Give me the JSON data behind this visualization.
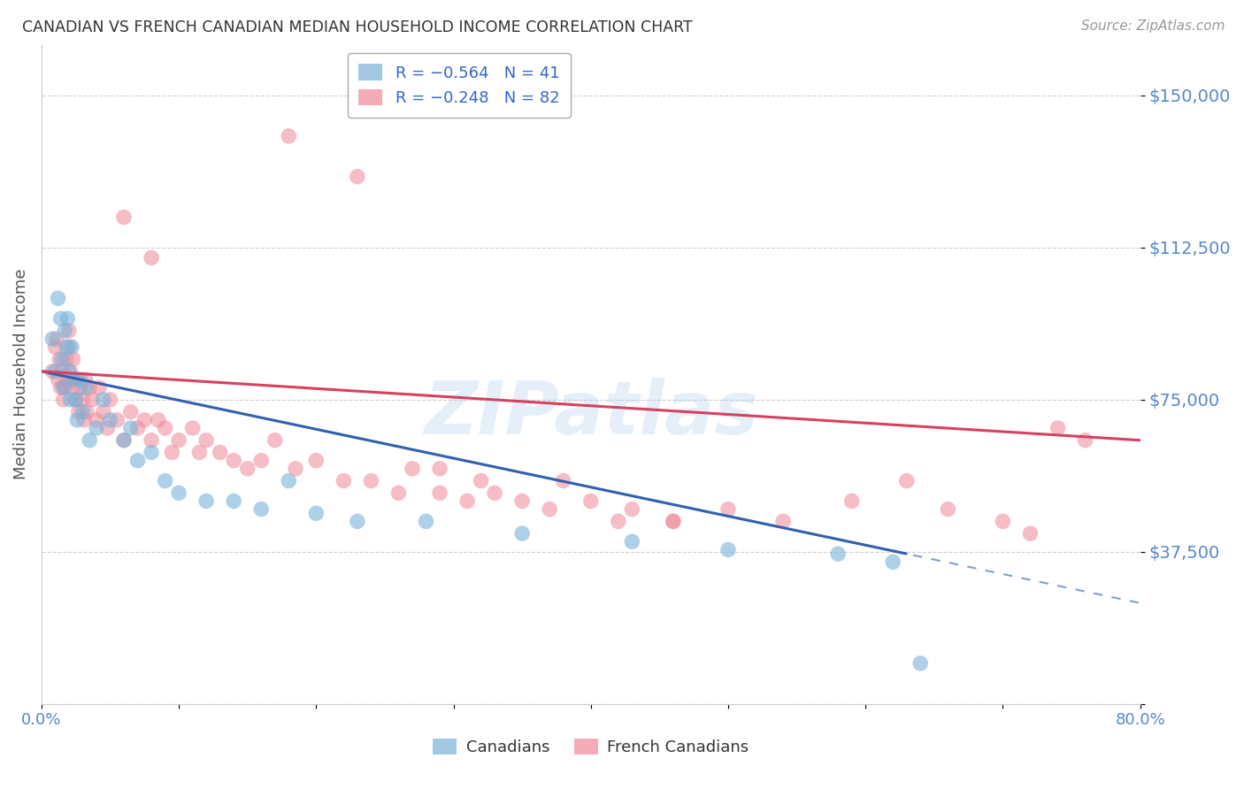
{
  "title": "CANADIAN VS FRENCH CANADIAN MEDIAN HOUSEHOLD INCOME CORRELATION CHART",
  "source": "Source: ZipAtlas.com",
  "ylabel": "Median Household Income",
  "watermark": "ZIPatlas",
  "xlim": [
    0.0,
    0.8
  ],
  "ylim": [
    0,
    162500
  ],
  "yticks": [
    0,
    37500,
    75000,
    112500,
    150000
  ],
  "ytick_labels": [
    "",
    "$37,500",
    "$75,000",
    "$112,500",
    "$150,000"
  ],
  "canadian_color": "#7ab3d9",
  "french_canadian_color": "#f08898",
  "canadian_line_color": "#3060b0",
  "french_canadian_line_color": "#d84060",
  "bg_color": "#ffffff",
  "grid_color": "#cccccc",
  "title_color": "#333333",
  "axis_label_color": "#555555",
  "tick_label_color": "#5588cc",
  "source_color": "#999999",
  "canadians_x": [
    0.008,
    0.01,
    0.012,
    0.014,
    0.015,
    0.016,
    0.017,
    0.018,
    0.019,
    0.02,
    0.021,
    0.022,
    0.023,
    0.025,
    0.026,
    0.028,
    0.03,
    0.032,
    0.035,
    0.04,
    0.045,
    0.05,
    0.06,
    0.065,
    0.07,
    0.08,
    0.09,
    0.1,
    0.12,
    0.14,
    0.16,
    0.18,
    0.2,
    0.23,
    0.28,
    0.35,
    0.43,
    0.5,
    0.58,
    0.62,
    0.64
  ],
  "canadians_y": [
    90000,
    82000,
    100000,
    95000,
    85000,
    78000,
    92000,
    88000,
    95000,
    82000,
    75000,
    88000,
    80000,
    75000,
    70000,
    80000,
    72000,
    78000,
    65000,
    68000,
    75000,
    70000,
    65000,
    68000,
    60000,
    62000,
    55000,
    52000,
    50000,
    50000,
    48000,
    55000,
    47000,
    45000,
    45000,
    42000,
    40000,
    38000,
    37000,
    35000,
    10000
  ],
  "french_canadians_x": [
    0.008,
    0.01,
    0.011,
    0.012,
    0.013,
    0.014,
    0.015,
    0.016,
    0.017,
    0.018,
    0.019,
    0.02,
    0.02,
    0.021,
    0.022,
    0.023,
    0.024,
    0.025,
    0.026,
    0.027,
    0.028,
    0.03,
    0.031,
    0.032,
    0.033,
    0.035,
    0.037,
    0.04,
    0.042,
    0.045,
    0.048,
    0.05,
    0.055,
    0.06,
    0.065,
    0.07,
    0.075,
    0.08,
    0.085,
    0.09,
    0.095,
    0.1,
    0.11,
    0.115,
    0.12,
    0.13,
    0.14,
    0.15,
    0.16,
    0.17,
    0.185,
    0.2,
    0.22,
    0.24,
    0.26,
    0.29,
    0.31,
    0.33,
    0.37,
    0.4,
    0.43,
    0.46,
    0.32,
    0.35,
    0.42,
    0.27,
    0.29,
    0.38,
    0.46,
    0.5,
    0.54,
    0.59,
    0.63,
    0.66,
    0.7,
    0.72,
    0.74,
    0.76,
    0.06,
    0.08,
    0.18,
    0.23
  ],
  "french_canadians_y": [
    82000,
    88000,
    90000,
    80000,
    85000,
    78000,
    82000,
    75000,
    78000,
    85000,
    80000,
    88000,
    92000,
    82000,
    78000,
    85000,
    80000,
    75000,
    80000,
    72000,
    78000,
    75000,
    70000,
    80000,
    72000,
    78000,
    75000,
    70000,
    78000,
    72000,
    68000,
    75000,
    70000,
    65000,
    72000,
    68000,
    70000,
    65000,
    70000,
    68000,
    62000,
    65000,
    68000,
    62000,
    65000,
    62000,
    60000,
    58000,
    60000,
    65000,
    58000,
    60000,
    55000,
    55000,
    52000,
    58000,
    50000,
    52000,
    48000,
    50000,
    48000,
    45000,
    55000,
    50000,
    45000,
    58000,
    52000,
    55000,
    45000,
    48000,
    45000,
    50000,
    55000,
    48000,
    45000,
    42000,
    68000,
    65000,
    120000,
    110000,
    140000,
    130000
  ]
}
